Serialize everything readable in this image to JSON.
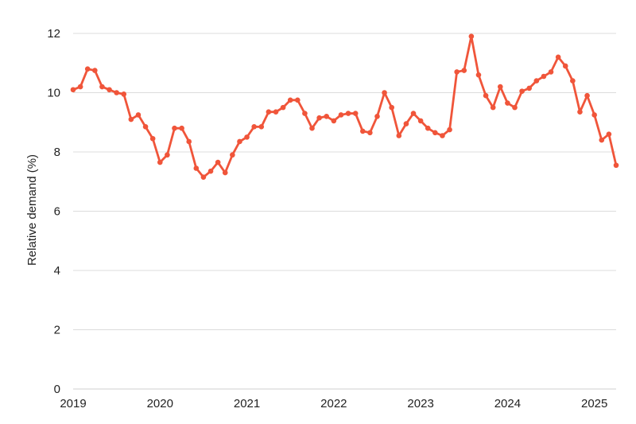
{
  "chart_data": {
    "type": "line",
    "title": "",
    "xlabel": "",
    "ylabel": "Relative demand (%)",
    "ylim": [
      0,
      12
    ],
    "yticks": [
      "0",
      "2",
      "4",
      "6",
      "8",
      "10",
      "12"
    ],
    "xticks": [
      "2019",
      "2020",
      "2021",
      "2022",
      "2023",
      "2024",
      "2025"
    ],
    "xlim": [
      "2019-01",
      "2025-04"
    ],
    "grid": "horizontal",
    "legend": "none",
    "series": [
      {
        "color": "#f0553a",
        "x": [
          "2019-01",
          "2019-02",
          "2019-03",
          "2019-04",
          "2019-05",
          "2019-06",
          "2019-07",
          "2019-08",
          "2019-09",
          "2019-10",
          "2019-11",
          "2019-12",
          "2020-01",
          "2020-02",
          "2020-03",
          "2020-04",
          "2020-05",
          "2020-06",
          "2020-07",
          "2020-08",
          "2020-09",
          "2020-10",
          "2020-11",
          "2020-12",
          "2021-01",
          "2021-02",
          "2021-03",
          "2021-04",
          "2021-05",
          "2021-06",
          "2021-07",
          "2021-08",
          "2021-09",
          "2021-10",
          "2021-11",
          "2021-12",
          "2022-01",
          "2022-02",
          "2022-03",
          "2022-04",
          "2022-05",
          "2022-06",
          "2022-07",
          "2022-08",
          "2022-09",
          "2022-10",
          "2022-11",
          "2022-12",
          "2023-01",
          "2023-02",
          "2023-03",
          "2023-04",
          "2023-05",
          "2023-06",
          "2023-07",
          "2023-08",
          "2023-09",
          "2023-10",
          "2023-11",
          "2023-12",
          "2024-01",
          "2024-02",
          "2024-03",
          "2024-04",
          "2024-05",
          "2024-06",
          "2024-07",
          "2024-08",
          "2024-09",
          "2024-10",
          "2024-11",
          "2024-12",
          "2025-01",
          "2025-02",
          "2025-03",
          "2025-04"
        ],
        "values": [
          10.1,
          10.2,
          10.8,
          10.75,
          10.2,
          10.1,
          10.0,
          9.95,
          9.1,
          9.25,
          8.85,
          8.45,
          7.65,
          7.9,
          8.8,
          8.8,
          8.35,
          7.45,
          7.15,
          7.35,
          7.65,
          7.3,
          7.9,
          8.35,
          8.5,
          8.85,
          8.85,
          9.35,
          9.35,
          9.5,
          9.75,
          9.75,
          9.3,
          8.8,
          9.15,
          9.2,
          9.05,
          9.25,
          9.3,
          9.3,
          8.7,
          8.65,
          9.2,
          10.0,
          9.5,
          8.55,
          8.95,
          9.3,
          9.05,
          8.8,
          8.65,
          8.55,
          8.75,
          10.7,
          10.75,
          11.9,
          10.6,
          9.9,
          9.5,
          10.2,
          9.65,
          9.5,
          10.05,
          10.15,
          10.4,
          10.55,
          10.7,
          11.2,
          10.9,
          10.4,
          9.35,
          9.9,
          9.25,
          8.4,
          8.6,
          7.55
        ]
      }
    ]
  }
}
